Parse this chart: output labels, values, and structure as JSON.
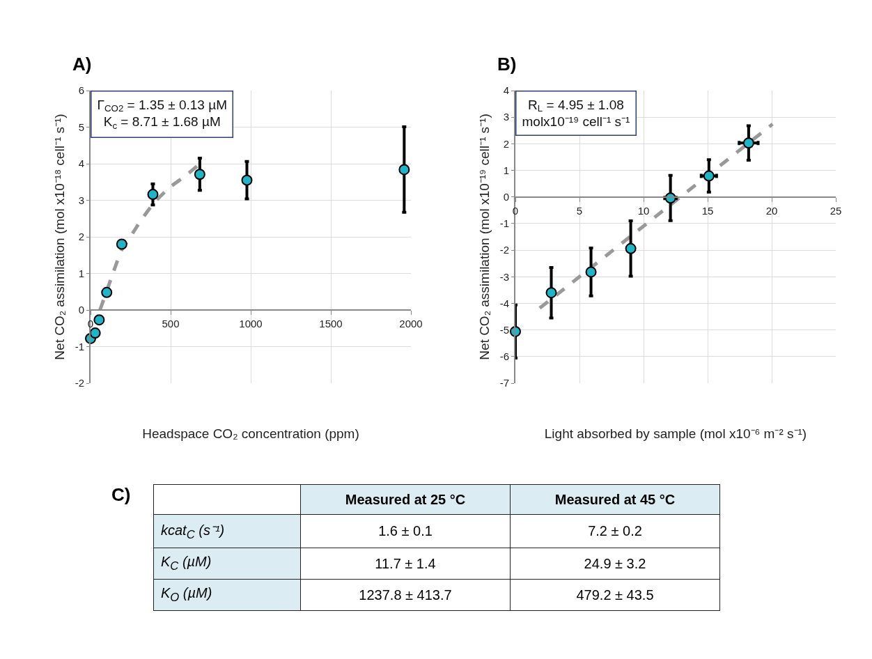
{
  "chart_data": [
    {
      "type": "scatter",
      "title": "A)",
      "xlabel": "Headspace CO₂ concentration (ppm)",
      "ylabel": "Net CO₂ assimilation (mol x10⁻¹⁸ cell⁻¹ s⁻¹)",
      "annotations": [
        "Γ$_{CO2}$ = 1.35 ± 0.13 µM",
        "K$_{c}$ = 8.71 ± 1.68 µM"
      ],
      "xlim": [
        0,
        2000
      ],
      "xticks": [
        0,
        500,
        1000,
        1500,
        2000
      ],
      "ylim": [
        -2,
        6
      ],
      "yticks": [
        -2,
        -1,
        0,
        1,
        2,
        3,
        4,
        5,
        6
      ],
      "grid": true,
      "series": [
        {
          "type": "scatter",
          "marker": "circle",
          "color": "#1fb5c8",
          "x": [
            0,
            29,
            54,
            101,
            195,
            389,
            682,
            976,
            1958
          ],
          "values": [
            -0.78,
            -0.63,
            -0.27,
            0.48,
            1.8,
            3.16,
            3.71,
            3.55,
            3.84
          ],
          "errors": [
            null,
            null,
            null,
            null,
            null,
            0.29,
            0.44,
            0.51,
            1.17
          ]
        },
        {
          "type": "line",
          "marker": "none",
          "color": "#999999",
          "line_style": "dashed",
          "x": [
            59,
            130,
            195,
            248,
            315,
            400,
            500,
            593,
            669
          ],
          "values": [
            0,
            0.88,
            1.65,
            2.0,
            2.45,
            2.95,
            3.37,
            3.67,
            3.95
          ]
        }
      ]
    },
    {
      "type": "scatter",
      "title": "B)",
      "xlabel": "Light absorbed by sample (mol x10⁻⁶ m⁻² s⁻¹)",
      "ylabel": "Net CO₂ assimilation (mol x10⁻¹⁹ cell⁻¹ s⁻¹)",
      "annotations": [
        "R$_{L}$ = 4.95 ± 1.08",
        "molx10⁻¹⁹ cell⁻¹ s⁻¹"
      ],
      "xlim": [
        0,
        25
      ],
      "xticks": [
        0,
        5,
        10,
        15,
        20,
        25
      ],
      "ylim": [
        -7,
        4
      ],
      "yticks": [
        -7,
        -6,
        -5,
        -4,
        -3,
        -2,
        -1,
        0,
        1,
        2,
        3,
        4
      ],
      "grid": true,
      "series": [
        {
          "type": "scatter",
          "marker": "circle",
          "color": "#1fb5c8",
          "x": [
            0,
            2.8,
            5.9,
            9.0,
            12.1,
            15.1,
            18.2
          ],
          "values": [
            -5.06,
            -3.6,
            -2.82,
            -1.94,
            -0.04,
            0.79,
            2.03
          ],
          "errors": [
            1.0,
            0.95,
            0.9,
            1.04,
            0.85,
            0.61,
            0.65
          ],
          "xerrors": [
            null,
            null,
            null,
            null,
            0.45,
            0.6,
            0.74
          ]
        },
        {
          "type": "line",
          "marker": "none",
          "color": "#999999",
          "line_style": "dashed",
          "x": [
            1.9,
            20.07
          ],
          "values": [
            -4.18,
            2.74
          ]
        }
      ]
    },
    {
      "type": "other",
      "title": "C)",
      "categories": [
        null,
        "Measured at 25 °C",
        "Measured at 45 °C"
      ],
      "annotations": [
        "kcat$_{C}$ (s⁻¹)",
        "1.6 ± 0.1",
        "7.2 ± 0.2",
        "K$_{C}$ (µM)",
        "11.7 ± 1.4",
        "24.9 ± 3.2",
        "K$_{O}$ (µM)",
        "1237.8 ± 413.7",
        "479.2 ± 43.5"
      ]
    }
  ]
}
